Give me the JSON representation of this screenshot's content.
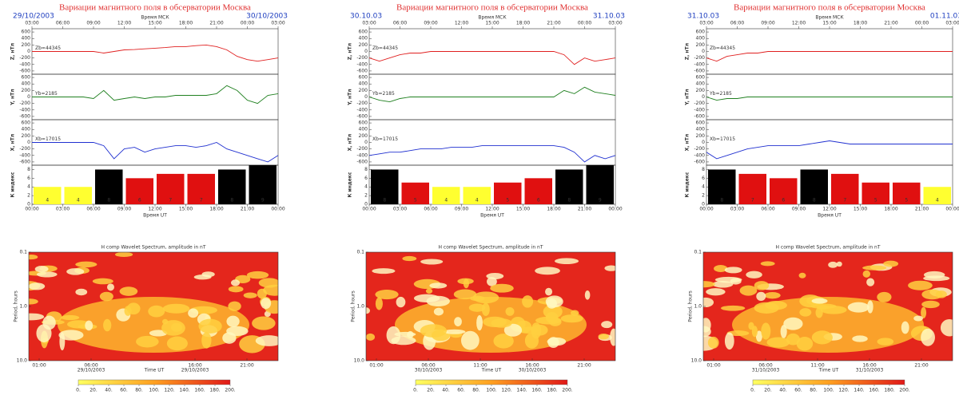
{
  "chart_data": [
    {
      "type": "line",
      "title": "Вариации магнитного поля в обсерватории Москва",
      "date_left": "29/10/2003",
      "date_right": "30/10/2003",
      "top_axis_label": "Время МСК",
      "x_label": "Время UT",
      "x": [
        0,
        1,
        2,
        3,
        4,
        5,
        6,
        7,
        8,
        9,
        10,
        11,
        12,
        13,
        14,
        15,
        16,
        17,
        18,
        19,
        20,
        21,
        22,
        23,
        24
      ],
      "xlim": [
        0,
        24
      ],
      "xticks": [
        {
          "value": 0,
          "label": "00:00"
        },
        {
          "value": 3,
          "label": "03:00"
        },
        {
          "value": 6,
          "label": "06:00"
        },
        {
          "value": 9,
          "label": "09:00"
        },
        {
          "value": 12,
          "label": "12:00"
        },
        {
          "value": 15,
          "label": "15:00"
        },
        {
          "value": 18,
          "label": "18:00"
        },
        {
          "value": 21,
          "label": "21:00"
        },
        {
          "value": 24,
          "label": "00:00"
        }
      ],
      "top_xticks": [
        {
          "value": 0,
          "label": "03:00"
        },
        {
          "value": 3,
          "label": "06:00"
        },
        {
          "value": 6,
          "label": "09:00"
        },
        {
          "value": 9,
          "label": "12:00"
        },
        {
          "value": 12,
          "label": "15:00"
        },
        {
          "value": 15,
          "label": "18:00"
        },
        {
          "value": 18,
          "label": "21:00"
        },
        {
          "value": 21,
          "label": "00:00"
        },
        {
          "value": 24,
          "label": "03:00"
        }
      ],
      "ylim": [
        -700,
        700
      ],
      "yticks": [
        600,
        400,
        200,
        0,
        -200,
        -400,
        -600
      ],
      "series": [
        {
          "name": "Z, нТл",
          "base": "Zb=44345",
          "color": "#e02020",
          "values": [
            0,
            0,
            0,
            0,
            0,
            0,
            0,
            -50,
            0,
            50,
            60,
            80,
            100,
            120,
            150,
            150,
            180,
            200,
            150,
            50,
            -150,
            -250,
            -300,
            -250,
            -200
          ]
        },
        {
          "name": "Y, нТл",
          "base": "Yb=2185",
          "color": "#208020",
          "values": [
            0,
            0,
            0,
            0,
            0,
            0,
            -50,
            200,
            -100,
            -50,
            0,
            -50,
            0,
            0,
            50,
            50,
            50,
            50,
            100,
            350,
            200,
            -100,
            -200,
            50,
            100
          ]
        },
        {
          "name": "X, нТл",
          "base": "Xb=17015",
          "color": "#2030d0",
          "values": [
            0,
            0,
            0,
            0,
            0,
            0,
            0,
            -100,
            -500,
            -200,
            -150,
            -300,
            -200,
            -150,
            -100,
            -100,
            -150,
            -100,
            0,
            -200,
            -300,
            -400,
            -500,
            -600,
            -400
          ]
        }
      ],
      "k_index": {
        "label": "К индекс",
        "ylim": [
          0,
          9
        ],
        "yticks": [
          0,
          2,
          4,
          6,
          8
        ],
        "values": [
          4,
          4,
          8,
          6,
          7,
          7,
          8,
          9
        ],
        "colors": [
          "#ffff30",
          "#ffff30",
          "#000000",
          "#e01010",
          "#e01010",
          "#e01010",
          "#000000",
          "#000000"
        ]
      }
    },
    {
      "type": "heatmap",
      "title": "H comp Wavelet Spectrum, amplitude in nT",
      "y_label": "Period, hours",
      "x_label": "Time UT",
      "xlim": [
        0,
        24
      ],
      "ylim": [
        0.1,
        10
      ],
      "log_y": true,
      "yticks": [
        0.1,
        {
          "value": 1,
          "label": "1.0"
        },
        {
          "value": 10,
          "label": "10.0"
        }
      ],
      "xticks": [
        {
          "value": 1,
          "label": "01:00"
        },
        {
          "value": 6,
          "label": "06:00"
        },
        {
          "value": 16,
          "label": "16:00"
        },
        {
          "value": 21,
          "label": "21:00"
        }
      ],
      "date_ticks": [
        {
          "value": 6,
          "label": "29/10/2003"
        },
        {
          "value": 16,
          "label": "29/10/2003"
        }
      ],
      "clim": [
        0,
        200
      ],
      "colorbar_ticks": [
        {
          "value": 0,
          "label": "0."
        },
        {
          "value": 20,
          "label": "20."
        },
        {
          "value": 40,
          "label": "40."
        },
        {
          "value": 60,
          "label": "60."
        },
        {
          "value": 80,
          "label": "80."
        },
        {
          "value": 100,
          "label": "100."
        },
        {
          "value": 120,
          "label": "120."
        },
        {
          "value": 140,
          "label": "140."
        },
        {
          "value": 160,
          "label": "160."
        },
        {
          "value": 180,
          "label": "180."
        },
        {
          "value": 200,
          "label": "200."
        }
      ]
    },
    {
      "type": "line",
      "title": "Вариации магнитного поля в обсерватории Москва",
      "date_left": "30.10.03",
      "date_right": "31.10.03",
      "top_axis_label": "Время МСК",
      "x_label": "Время UT",
      "x": [
        0,
        1,
        2,
        3,
        4,
        5,
        6,
        7,
        8,
        9,
        10,
        11,
        12,
        13,
        14,
        15,
        16,
        17,
        18,
        19,
        20,
        21,
        22,
        23,
        24
      ],
      "xlim": [
        0,
        24
      ],
      "xticks": [
        {
          "value": 0,
          "label": "00:00"
        },
        {
          "value": 3,
          "label": "03:00"
        },
        {
          "value": 6,
          "label": "06:00"
        },
        {
          "value": 9,
          "label": "09:00"
        },
        {
          "value": 12,
          "label": "12:00"
        },
        {
          "value": 15,
          "label": "15:00"
        },
        {
          "value": 18,
          "label": "18:00"
        },
        {
          "value": 21,
          "label": "21:00"
        },
        {
          "value": 24,
          "label": "00:00"
        }
      ],
      "top_xticks": [
        {
          "value": 0,
          "label": "03:00"
        },
        {
          "value": 3,
          "label": "06:00"
        },
        {
          "value": 6,
          "label": "09:00"
        },
        {
          "value": 9,
          "label": "12:00"
        },
        {
          "value": 12,
          "label": "15:00"
        },
        {
          "value": 15,
          "label": "18:00"
        },
        {
          "value": 18,
          "label": "21:00"
        },
        {
          "value": 21,
          "label": "00:00"
        },
        {
          "value": 24,
          "label": "03:00"
        }
      ],
      "ylim": [
        -700,
        700
      ],
      "yticks": [
        600,
        400,
        200,
        0,
        -200,
        -400,
        -600
      ],
      "series": [
        {
          "name": "Z, нТл",
          "base": "Zb=44345",
          "color": "#e02020",
          "values": [
            -200,
            -300,
            -200,
            -100,
            -50,
            -50,
            0,
            0,
            0,
            0,
            0,
            0,
            0,
            0,
            0,
            0,
            0,
            0,
            0,
            -100,
            -400,
            -200,
            -300,
            -250,
            -200
          ]
        },
        {
          "name": "Y, нТл",
          "base": "Yb=2185",
          "color": "#208020",
          "values": [
            0,
            -100,
            -150,
            -50,
            0,
            0,
            0,
            0,
            0,
            0,
            0,
            0,
            0,
            0,
            0,
            0,
            0,
            0,
            0,
            200,
            100,
            300,
            150,
            100,
            50
          ]
        },
        {
          "name": "X, нТл",
          "base": "Xb=17015",
          "color": "#2030d0",
          "values": [
            -400,
            -350,
            -300,
            -300,
            -250,
            -200,
            -200,
            -200,
            -150,
            -150,
            -150,
            -100,
            -100,
            -100,
            -100,
            -100,
            -100,
            -100,
            -100,
            -150,
            -300,
            -600,
            -400,
            -500,
            -400
          ]
        }
      ],
      "k_index": {
        "label": "К индекс",
        "ylim": [
          0,
          9
        ],
        "yticks": [
          0,
          2,
          4,
          6,
          8
        ],
        "values": [
          8,
          5,
          4,
          4,
          5,
          6,
          8,
          9
        ],
        "colors": [
          "#000000",
          "#e01010",
          "#ffff30",
          "#ffff30",
          "#e01010",
          "#e01010",
          "#000000",
          "#000000"
        ]
      }
    },
    {
      "type": "heatmap",
      "title": "H comp Wavelet Spectrum, amplitude in nT",
      "y_label": "Period, hours",
      "x_label": "Time UT",
      "xlim": [
        0,
        24
      ],
      "ylim": [
        0.1,
        10
      ],
      "log_y": true,
      "yticks": [
        0.1,
        {
          "value": 1,
          "label": "1.0"
        },
        {
          "value": 10,
          "label": "10.0"
        }
      ],
      "xticks": [
        {
          "value": 1,
          "label": "01:00"
        },
        {
          "value": 6,
          "label": "06:00"
        },
        {
          "value": 11,
          "label": "11:00"
        },
        {
          "value": 16,
          "label": "16:00"
        },
        {
          "value": 21,
          "label": "21:00"
        }
      ],
      "date_ticks": [
        {
          "value": 6,
          "label": "30/10/2003"
        },
        {
          "value": 16,
          "label": "30/10/2003"
        }
      ],
      "clim": [
        0,
        200
      ],
      "colorbar_ticks": [
        {
          "value": 0,
          "label": "0."
        },
        {
          "value": 20,
          "label": "20."
        },
        {
          "value": 40,
          "label": "40."
        },
        {
          "value": 60,
          "label": "60."
        },
        {
          "value": 80,
          "label": "80."
        },
        {
          "value": 100,
          "label": "100."
        },
        {
          "value": 120,
          "label": "120."
        },
        {
          "value": 140,
          "label": "140."
        },
        {
          "value": 160,
          "label": "160."
        },
        {
          "value": 180,
          "label": "180."
        },
        {
          "value": 200,
          "label": "200."
        }
      ]
    },
    {
      "type": "line",
      "title": "Вариации магнитного поля в обсерватории Москва",
      "date_left": "31.10.03",
      "date_right": "01.11.03",
      "top_axis_label": "Время МСК",
      "x_label": "Время UT",
      "x": [
        0,
        1,
        2,
        3,
        4,
        5,
        6,
        7,
        8,
        9,
        10,
        11,
        12,
        13,
        14,
        15,
        16,
        17,
        18,
        19,
        20,
        21,
        22,
        23,
        24
      ],
      "xlim": [
        0,
        24
      ],
      "xticks": [
        {
          "value": 0,
          "label": "00:00"
        },
        {
          "value": 3,
          "label": "03:00"
        },
        {
          "value": 6,
          "label": "06:00"
        },
        {
          "value": 9,
          "label": "09:00"
        },
        {
          "value": 12,
          "label": "12:00"
        },
        {
          "value": 15,
          "label": "15:00"
        },
        {
          "value": 18,
          "label": "18:00"
        },
        {
          "value": 21,
          "label": "21:00"
        },
        {
          "value": 24,
          "label": "00:00"
        }
      ],
      "top_xticks": [
        {
          "value": 0,
          "label": "03:00"
        },
        {
          "value": 3,
          "label": "06:00"
        },
        {
          "value": 6,
          "label": "09:00"
        },
        {
          "value": 9,
          "label": "12:00"
        },
        {
          "value": 12,
          "label": "15:00"
        },
        {
          "value": 15,
          "label": "18:00"
        },
        {
          "value": 18,
          "label": "21:00"
        },
        {
          "value": 21,
          "label": "00:00"
        },
        {
          "value": 24,
          "label": "03:00"
        }
      ],
      "ylim": [
        -700,
        700
      ],
      "yticks": [
        600,
        400,
        200,
        0,
        -200,
        -400,
        -600
      ],
      "series": [
        {
          "name": "Z, нТл",
          "base": "Zb=44345",
          "color": "#e02020",
          "values": [
            -200,
            -300,
            -150,
            -100,
            -50,
            -50,
            0,
            0,
            0,
            0,
            0,
            0,
            0,
            0,
            0,
            0,
            0,
            0,
            0,
            0,
            0,
            0,
            0,
            0,
            0
          ]
        },
        {
          "name": "Y, нТл",
          "base": "Yb=2185",
          "color": "#208020",
          "values": [
            0,
            -100,
            -50,
            -50,
            0,
            0,
            0,
            0,
            0,
            0,
            0,
            0,
            0,
            0,
            0,
            0,
            0,
            0,
            0,
            0,
            0,
            0,
            0,
            0,
            0
          ]
        },
        {
          "name": "X, нТл",
          "base": "Xb=17015",
          "color": "#2030d0",
          "values": [
            -300,
            -500,
            -400,
            -300,
            -200,
            -150,
            -100,
            -100,
            -100,
            -100,
            -50,
            0,
            50,
            0,
            -50,
            -50,
            -50,
            -50,
            -50,
            -50,
            -50,
            -50,
            -50,
            -50,
            -50
          ]
        }
      ],
      "k_index": {
        "label": "К индекс",
        "ylim": [
          0,
          9
        ],
        "yticks": [
          0,
          2,
          4,
          6,
          8
        ],
        "values": [
          8,
          7,
          6,
          8,
          7,
          5,
          5,
          4
        ],
        "colors": [
          "#000000",
          "#e01010",
          "#e01010",
          "#000000",
          "#e01010",
          "#e01010",
          "#e01010",
          "#ffff30"
        ]
      }
    },
    {
      "type": "heatmap",
      "title": "H comp Wavelet Spectrum, amplitude in nT",
      "y_label": "Period, hours",
      "x_label": "Time UT",
      "xlim": [
        0,
        24
      ],
      "ylim": [
        0.1,
        10
      ],
      "log_y": true,
      "yticks": [
        0.1,
        {
          "value": 1,
          "label": "1.0"
        },
        {
          "value": 10,
          "label": "10.0"
        }
      ],
      "xticks": [
        {
          "value": 1,
          "label": "01:00"
        },
        {
          "value": 6,
          "label": "06:00"
        },
        {
          "value": 11,
          "label": "11:00"
        },
        {
          "value": 16,
          "label": "16:00"
        },
        {
          "value": 21,
          "label": "21:00"
        }
      ],
      "date_ticks": [
        {
          "value": 6,
          "label": "31/10/2003"
        },
        {
          "value": 16,
          "label": "31/10/2003"
        }
      ],
      "clim": [
        0,
        200
      ],
      "colorbar_ticks": [
        {
          "value": 0,
          "label": "0."
        },
        {
          "value": 20,
          "label": "20."
        },
        {
          "value": 40,
          "label": "40."
        },
        {
          "value": 60,
          "label": "60."
        },
        {
          "value": 80,
          "label": "80."
        },
        {
          "value": 100,
          "label": "100."
        },
        {
          "value": 120,
          "label": "120."
        },
        {
          "value": 140,
          "label": "140."
        },
        {
          "value": 160,
          "label": "160."
        },
        {
          "value": 180,
          "label": "180."
        },
        {
          "value": 200,
          "label": "200."
        }
      ]
    }
  ]
}
